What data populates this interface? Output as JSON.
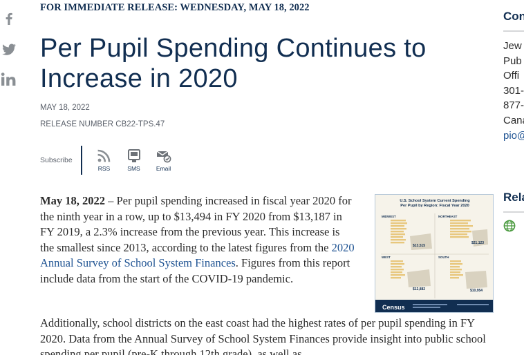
{
  "share": {
    "facebook_icon": "facebook-icon",
    "twitter_icon": "twitter-icon",
    "linkedin_icon": "linkedin-icon",
    "icon_color": "#8a8f94"
  },
  "article": {
    "kicker": "FOR IMMEDIATE RELEASE: WEDNESDAY, MAY 18, 2022",
    "title": "Per Pupil Spending Continues to Increase in 2020",
    "date": "MAY 18, 2022",
    "release_number": "RELEASE NUMBER CB22-TPS.47",
    "subscribe": {
      "label": "Subscribe",
      "items": [
        {
          "label": "RSS",
          "icon": "rss-icon"
        },
        {
          "label": "SMS",
          "icon": "sms-phone-icon"
        },
        {
          "label": "Email",
          "icon": "email-icon"
        }
      ]
    },
    "para1": {
      "dateline": "May 18, 2022",
      "text_before_link": " – Per pupil spending increased in fiscal year 2020 for the ninth year in a row, up to $13,494 in FY 2020 from $13,187 in FY 2019, a 2.3% increase from the previous year. This increase is the smallest since 2013, according to the latest figures from the ",
      "link_text": "2020 Annual Survey of School System Finances",
      "text_after_link": ". Figures from this report include data from the start of the COVID-19 pandemic."
    },
    "para2": "Additionally, school districts on the east coast had the highest rates of per pupil spending in FY 2020. Data from the Annual Survey of School System Finances provide insight into public school spending per pupil (pre-K through 12th grade), as well as",
    "thumbnail": {
      "title": "U.S. School System Current Spending Per Pupil by Region: Fiscal Year 2020",
      "regions": [
        "MIDWEST",
        "NORTHEAST",
        "WEST",
        "SOUTH"
      ],
      "values": [
        "$13,515",
        "$21,123",
        "$12,882",
        "$10,954"
      ],
      "brand": "Census",
      "colors": {
        "header": "#112e51",
        "panel": "#f6f3ea",
        "bars": "#e8c77d",
        "map": "#d9d2c0"
      }
    }
  },
  "aside": {
    "contact_heading": "Con",
    "contact_lines": [
      "Jew",
      "Pub",
      "Offi",
      "301-",
      "877-",
      "Cana"
    ],
    "contact_email": "pio@",
    "related_heading": "Rela",
    "related_icon": "globe-icon",
    "link_color": "#205493"
  }
}
